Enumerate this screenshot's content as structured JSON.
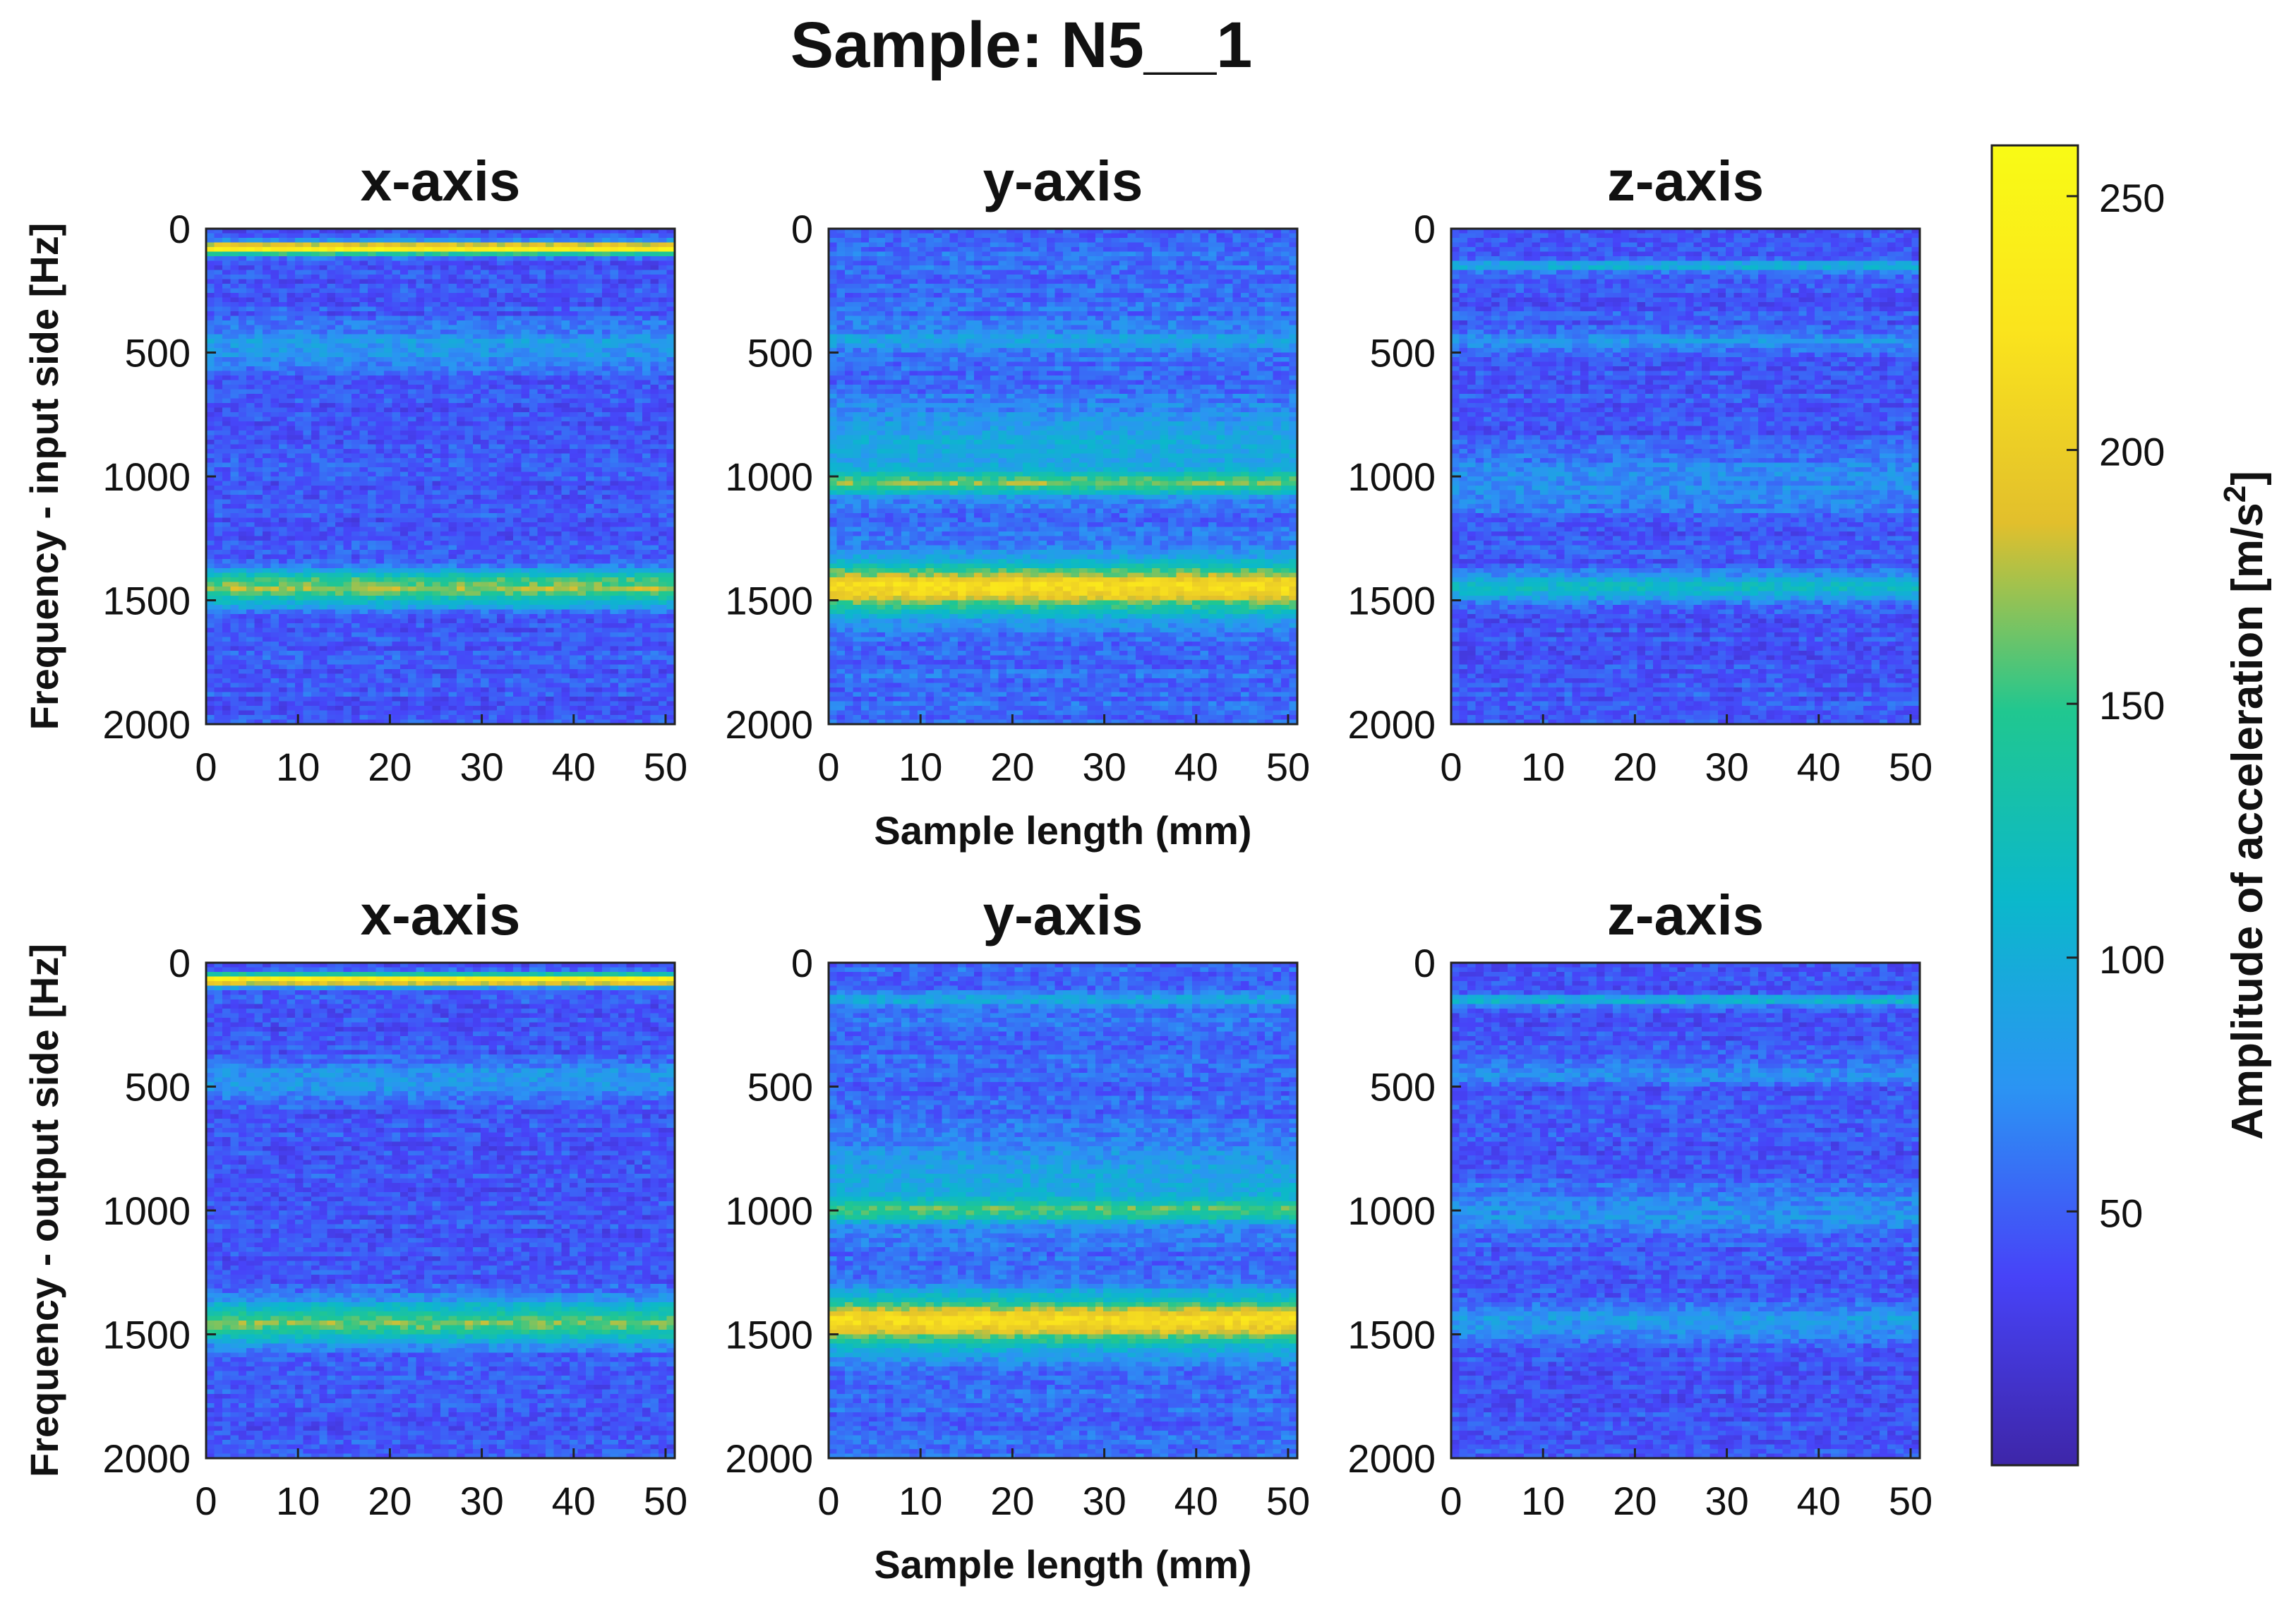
{
  "chart_data": {
    "type": "heatmap",
    "title": "Sample: N5__1",
    "colormap": "parula",
    "colors": {
      "colormap_stops": [
        "#3e26a8",
        "#4743f8",
        "#2b94f3",
        "#0bb8cb",
        "#20c790",
        "#e2bf2c",
        "#fae31d",
        "#f9fb15"
      ]
    },
    "colorbar": {
      "label": "Amplitude of acceleration [m/s",
      "label_superscript": "2",
      "label_close": "]",
      "range": [
        0,
        260
      ],
      "ticks": [
        50,
        100,
        150,
        200,
        250
      ],
      "tick_labels": [
        "50",
        "100",
        "150",
        "200",
        "250"
      ]
    },
    "x_ticks": [
      0,
      10,
      20,
      30,
      40,
      50
    ],
    "x_tick_labels": [
      "0",
      "10",
      "20",
      "30",
      "40",
      "50"
    ],
    "y_ticks": [
      0,
      500,
      1000,
      1500,
      2000
    ],
    "y_tick_labels": [
      "0",
      "500",
      "1000",
      "1500",
      "2000"
    ],
    "xlim": [
      0,
      51
    ],
    "ylim": [
      0,
      2000
    ],
    "y_reversed": true,
    "rows": [
      {
        "ylabel": "Frequency - input side [Hz]",
        "xlabel": "Sample length (mm)",
        "panels": [
          {
            "title": "x-axis",
            "base": 45,
            "peak_bands": [
              {
                "freq": 80,
                "amplitude": 240,
                "width": 18
              },
              {
                "freq": 480,
                "amplitude": 85,
                "width": 60
              },
              {
                "freq": 1450,
                "amplitude": 170,
                "width": 50
              }
            ]
          },
          {
            "title": "y-axis",
            "base": 55,
            "peak_bands": [
              {
                "freq": 450,
                "amplitude": 85,
                "width": 40
              },
              {
                "freq": 900,
                "amplitude": 95,
                "width": 120
              },
              {
                "freq": 1030,
                "amplitude": 140,
                "width": 30
              },
              {
                "freq": 1450,
                "amplitude": 215,
                "width": 70
              }
            ]
          },
          {
            "title": "z-axis",
            "base": 45,
            "peak_bands": [
              {
                "freq": 150,
                "amplitude": 110,
                "width": 15
              },
              {
                "freq": 450,
                "amplitude": 75,
                "width": 30
              },
              {
                "freq": 1030,
                "amplitude": 75,
                "width": 90
              },
              {
                "freq": 1450,
                "amplitude": 110,
                "width": 40
              }
            ]
          }
        ]
      },
      {
        "ylabel": "Frequency - output side [Hz]",
        "xlabel": "Sample length (mm)",
        "panels": [
          {
            "title": "x-axis",
            "base": 45,
            "peak_bands": [
              {
                "freq": 70,
                "amplitude": 240,
                "width": 18
              },
              {
                "freq": 480,
                "amplitude": 85,
                "width": 50
              },
              {
                "freq": 1450,
                "amplitude": 160,
                "width": 60
              }
            ]
          },
          {
            "title": "y-axis",
            "base": 55,
            "peak_bands": [
              {
                "freq": 150,
                "amplitude": 90,
                "width": 20
              },
              {
                "freq": 900,
                "amplitude": 95,
                "width": 120
              },
              {
                "freq": 1000,
                "amplitude": 130,
                "width": 30
              },
              {
                "freq": 1450,
                "amplitude": 215,
                "width": 70
              }
            ]
          },
          {
            "title": "z-axis",
            "base": 45,
            "peak_bands": [
              {
                "freq": 150,
                "amplitude": 110,
                "width": 15
              },
              {
                "freq": 450,
                "amplitude": 70,
                "width": 30
              },
              {
                "freq": 1000,
                "amplitude": 75,
                "width": 80
              },
              {
                "freq": 1450,
                "amplitude": 85,
                "width": 50
              }
            ]
          }
        ]
      }
    ]
  }
}
